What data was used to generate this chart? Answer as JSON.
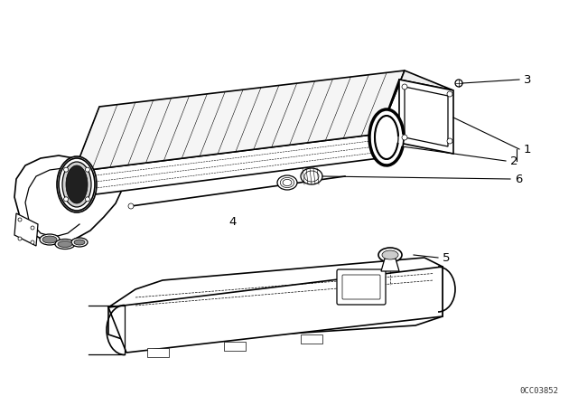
{
  "bg_color": "#ffffff",
  "line_color": "#000000",
  "diagram_id": "0CC03852",
  "fig_width": 6.4,
  "fig_height": 4.48,
  "dpi": 100,
  "lw_thin": 0.5,
  "lw_med": 0.9,
  "lw_thick": 1.2
}
